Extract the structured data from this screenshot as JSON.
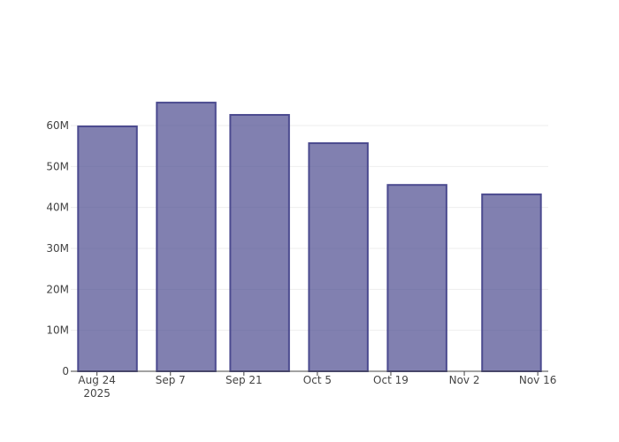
{
  "chart_data": {
    "type": "bar",
    "x": [
      "2025-08-26",
      "2025-09-10",
      "2025-09-24",
      "2025-10-09",
      "2025-10-24",
      "2025-11-11"
    ],
    "values": [
      59800000,
      65600000,
      62600000,
      55700000,
      45500000,
      43200000
    ],
    "color": "#4b4a8f",
    "xlim": [
      "2025-08-19",
      "2025-11-18"
    ],
    "xticks": [
      {
        "value": "2025-08-24",
        "label": "Aug 24\n2025"
      },
      {
        "value": "2025-09-07",
        "label": "Sep 7"
      },
      {
        "value": "2025-09-21",
        "label": "Sep 21"
      },
      {
        "value": "2025-10-05",
        "label": "Oct 5"
      },
      {
        "value": "2025-10-19",
        "label": "Oct 19"
      },
      {
        "value": "2025-11-02",
        "label": "Nov 2"
      },
      {
        "value": "2025-11-16",
        "label": "Nov 16"
      }
    ],
    "ylim": [
      0,
      69070000
    ],
    "yticks": [
      0,
      {
        "value": 10000000,
        "label": "10M"
      },
      {
        "value": 20000000,
        "label": "20M"
      },
      {
        "value": 30000000,
        "label": "30M"
      },
      {
        "value": 40000000,
        "label": "40M"
      },
      {
        "value": 50000000,
        "label": "50M"
      },
      {
        "value": 60000000,
        "label": "60M"
      }
    ],
    "grid": true
  }
}
